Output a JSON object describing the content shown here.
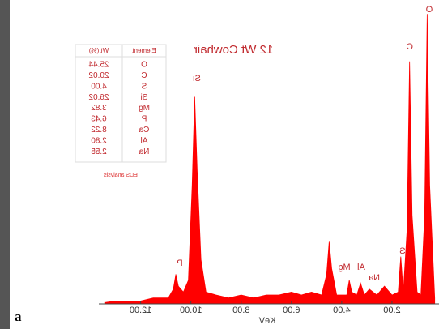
{
  "chart_data": {
    "type": "spectrum",
    "title": "12 Wt Cowhair",
    "x_label": "KeV",
    "panel_label": "a",
    "note": "EDS analysis",
    "color": "#ff0000",
    "x": [
      0.3,
      0.5,
      0.6,
      0.7,
      0.85,
      1.0,
      1.2,
      1.3,
      1.4,
      1.55,
      1.65,
      1.75,
      2.0,
      2.3,
      2.6,
      2.9,
      3.1,
      3.25,
      3.4,
      3.6,
      3.7,
      3.8,
      4.2,
      4.4,
      4.5,
      4.6,
      4.8,
      5.2,
      5.6,
      6.0,
      6.5,
      7.0,
      7.5,
      8.0,
      8.5,
      9.0,
      9.4,
      9.6,
      9.75,
      9.85,
      9.95,
      10.1,
      10.3,
      10.5,
      10.6,
      10.7,
      10.9,
      11.5,
      12.0,
      12.5,
      13.0,
      13.4
    ],
    "values": [
      2,
      40,
      98,
      30,
      3,
      4,
      30,
      82,
      25,
      4,
      16,
      4,
      3,
      6,
      3,
      5,
      3,
      7,
      3,
      4,
      8,
      3,
      3,
      12,
      21,
      10,
      3,
      4,
      3,
      4,
      3,
      3,
      2,
      3,
      2,
      3,
      4,
      15,
      45,
      70,
      40,
      8,
      4,
      6,
      10,
      5,
      2,
      2,
      1,
      1,
      1,
      0.5
    ],
    "xlim": [
      0,
      13.6
    ],
    "ylim": [
      0,
      100
    ],
    "xticks": [
      {
        "value": 2,
        "label": "2.00"
      },
      {
        "value": 4,
        "label": "4.00"
      },
      {
        "value": 6,
        "label": "6.00"
      },
      {
        "value": 8,
        "label": "8.00"
      },
      {
        "value": 10,
        "label": "10.00"
      },
      {
        "value": 12,
        "label": "12.00"
      }
    ],
    "annotations": [
      "O",
      "C",
      "Si",
      "S",
      "Mg",
      "Al",
      "Na",
      "P"
    ]
  },
  "table": {
    "headers": [
      "Element",
      "Wt (%)"
    ],
    "rows": [
      [
        "O",
        "25.44"
      ],
      [
        "C",
        "20.02"
      ],
      [
        "S",
        "4.00"
      ],
      [
        "Si",
        "26.02"
      ],
      [
        "Mg",
        "3.82"
      ],
      [
        "P",
        "6.43"
      ],
      [
        "Ca",
        "8.22"
      ],
      [
        "Al",
        "2.80"
      ],
      [
        "Na",
        "2.55"
      ]
    ]
  }
}
